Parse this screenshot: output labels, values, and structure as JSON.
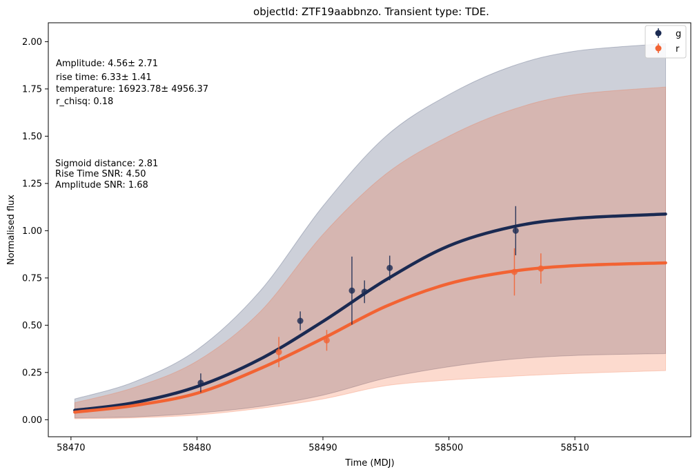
{
  "chart_data": {
    "type": "line",
    "title": "objectId: ZTF19aabbnzo. Transient type: TDE.",
    "xlabel": "Time (MDJ)",
    "ylabel": "Normalised flux",
    "xlim": [
      58468.2,
      58519.2
    ],
    "ylim": [
      -0.09,
      2.1
    ],
    "xticks": [
      58470,
      58480,
      58490,
      58500,
      58510
    ],
    "yticks": [
      0.0,
      0.25,
      0.5,
      0.75,
      1.0,
      1.25,
      1.5,
      1.75,
      2.0
    ],
    "xtick_labels": [
      "58470",
      "58480",
      "58490",
      "58500",
      "58510"
    ],
    "ytick_labels": [
      "0.00",
      "0.25",
      "0.50",
      "0.75",
      "1.00",
      "1.25",
      "1.50",
      "1.75",
      "2.00"
    ],
    "grid": false,
    "legend_position": "top-right",
    "annotations": [
      "Amplitude: 4.56± 2.71",
      "rise time: 6.33± 1.41",
      "temperature: 16923.78± 4956.37",
      "r_chisq: 0.18",
      "Sigmoid distance: 2.81",
      "Rise Time SNR: 4.50",
      "Amplitude SNR: 1.68"
    ],
    "series": [
      {
        "name": "g",
        "color": "#1a2a52",
        "observations": [
          {
            "x": 58480.3,
            "y": 0.195,
            "err": 0.05
          },
          {
            "x": 58488.2,
            "y": 0.523,
            "err": 0.05
          },
          {
            "x": 58492.3,
            "y": 0.683,
            "err": 0.18
          },
          {
            "x": 58493.3,
            "y": 0.677,
            "err": 0.06
          },
          {
            "x": 58495.3,
            "y": 0.803,
            "err": 0.065
          },
          {
            "x": 58505.3,
            "y": 1.0,
            "err": 0.13
          }
        ],
        "model": {
          "x": [
            58470.3,
            58475,
            58480,
            58485,
            58490,
            58495,
            58500,
            58505,
            58510,
            58517.2
          ],
          "y": [
            0.05,
            0.09,
            0.175,
            0.32,
            0.52,
            0.74,
            0.92,
            1.02,
            1.065,
            1.088
          ]
        },
        "band_upper": {
          "x": [
            58470.3,
            58475,
            58480,
            58485,
            58490,
            58495,
            58500,
            58505,
            58510,
            58517.2
          ],
          "y": [
            0.11,
            0.2,
            0.37,
            0.68,
            1.13,
            1.5,
            1.72,
            1.87,
            1.95,
            1.99
          ]
        },
        "band_lower": {
          "x": [
            58470.3,
            58475,
            58480,
            58485,
            58490,
            58495,
            58500,
            58505,
            58510,
            58517.2
          ],
          "y": [
            0.01,
            0.015,
            0.035,
            0.07,
            0.13,
            0.22,
            0.28,
            0.32,
            0.34,
            0.35
          ]
        }
      },
      {
        "name": "r",
        "color": "#f26333",
        "observations": [
          {
            "x": 58486.5,
            "y": 0.358,
            "err": 0.08
          },
          {
            "x": 58490.3,
            "y": 0.42,
            "err": 0.055
          },
          {
            "x": 58505.2,
            "y": 0.782,
            "err": 0.125
          },
          {
            "x": 58507.3,
            "y": 0.8,
            "err": 0.08
          }
        ],
        "model": {
          "x": [
            58470.3,
            58475,
            58480,
            58485,
            58490,
            58495,
            58500,
            58505,
            58510,
            58517.2
          ],
          "y": [
            0.04,
            0.075,
            0.14,
            0.27,
            0.43,
            0.6,
            0.72,
            0.785,
            0.815,
            0.83
          ]
        },
        "band_upper": {
          "x": [
            58470.3,
            58475,
            58480,
            58485,
            58490,
            58495,
            58500,
            58505,
            58510,
            58517.2
          ],
          "y": [
            0.09,
            0.17,
            0.31,
            0.57,
            0.98,
            1.3,
            1.5,
            1.64,
            1.72,
            1.76
          ]
        },
        "band_lower": {
          "x": [
            58470.3,
            58475,
            58480,
            58485,
            58490,
            58495,
            58500,
            58505,
            58510,
            58517.2
          ],
          "y": [
            0.005,
            0.01,
            0.025,
            0.06,
            0.11,
            0.18,
            0.21,
            0.23,
            0.245,
            0.26
          ]
        }
      }
    ]
  }
}
